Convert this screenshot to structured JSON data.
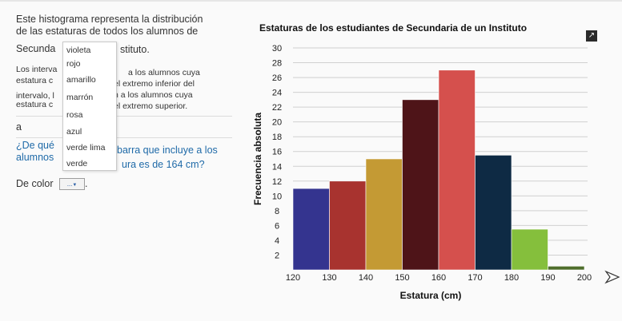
{
  "question": {
    "p1_line1": "Este histograma representa la distribución",
    "p1_line2": "de las estaturas de todos los alumnos de",
    "p1_line3_a": "Secunda",
    "p1_line3_b": "stituto.",
    "p2_line1_a": "Los interva",
    "p2_line1_b": "a los alumnos cuya",
    "p2_line2_a": "estatura c",
    "p2_line2_b": "el extremo inferior del",
    "p2_line3_a": "intervalo, l",
    "p2_line3_b": "n a los alumnos cuya",
    "p2_line4_a": "estatura c",
    "p2_line4_b": "el extremo superior.",
    "p3": "a",
    "q_line1_a": "¿De qué",
    "q_line1_b": "barra que incluye a los",
    "q_line2_a": "alumnos",
    "q_line2_b": "ura es de 164 cm?",
    "answer_prefix": "De color",
    "answer_suffix": ".",
    "select_value": "...",
    "select_options": [
      "violeta",
      "rojo",
      "amarillo",
      "marrón",
      "rosa",
      "azul",
      "verde lima",
      "verde"
    ]
  },
  "chart_data": {
    "type": "bar",
    "title": "Estaturas de los estudiantes de Secundaria de un Instituto",
    "xlabel": "Estatura (cm)",
    "ylabel": "Frecuencia absoluta",
    "x_ticks": [
      120,
      130,
      140,
      150,
      160,
      170,
      180,
      190,
      200
    ],
    "y_ticks": [
      2,
      4,
      6,
      8,
      10,
      12,
      14,
      16,
      18,
      20,
      22,
      24,
      26,
      28,
      30
    ],
    "xlim": [
      120,
      200
    ],
    "ylim": [
      0,
      30
    ],
    "bins": [
      {
        "from": 120,
        "to": 130,
        "value": 11,
        "color": "#34348f"
      },
      {
        "from": 130,
        "to": 140,
        "value": 12,
        "color": "#a8332f"
      },
      {
        "from": 140,
        "to": 150,
        "value": 15,
        "color": "#c49a34"
      },
      {
        "from": 150,
        "to": 160,
        "value": 23,
        "color": "#4e1418"
      },
      {
        "from": 160,
        "to": 170,
        "value": 27,
        "color": "#d5504d"
      },
      {
        "from": 170,
        "to": 180,
        "value": 15.5,
        "color": "#0e2a44"
      },
      {
        "from": 180,
        "to": 190,
        "value": 5.5,
        "color": "#85bf3c"
      },
      {
        "from": 190,
        "to": 200,
        "value": 0.5,
        "color": "#4f6e2c"
      }
    ]
  }
}
